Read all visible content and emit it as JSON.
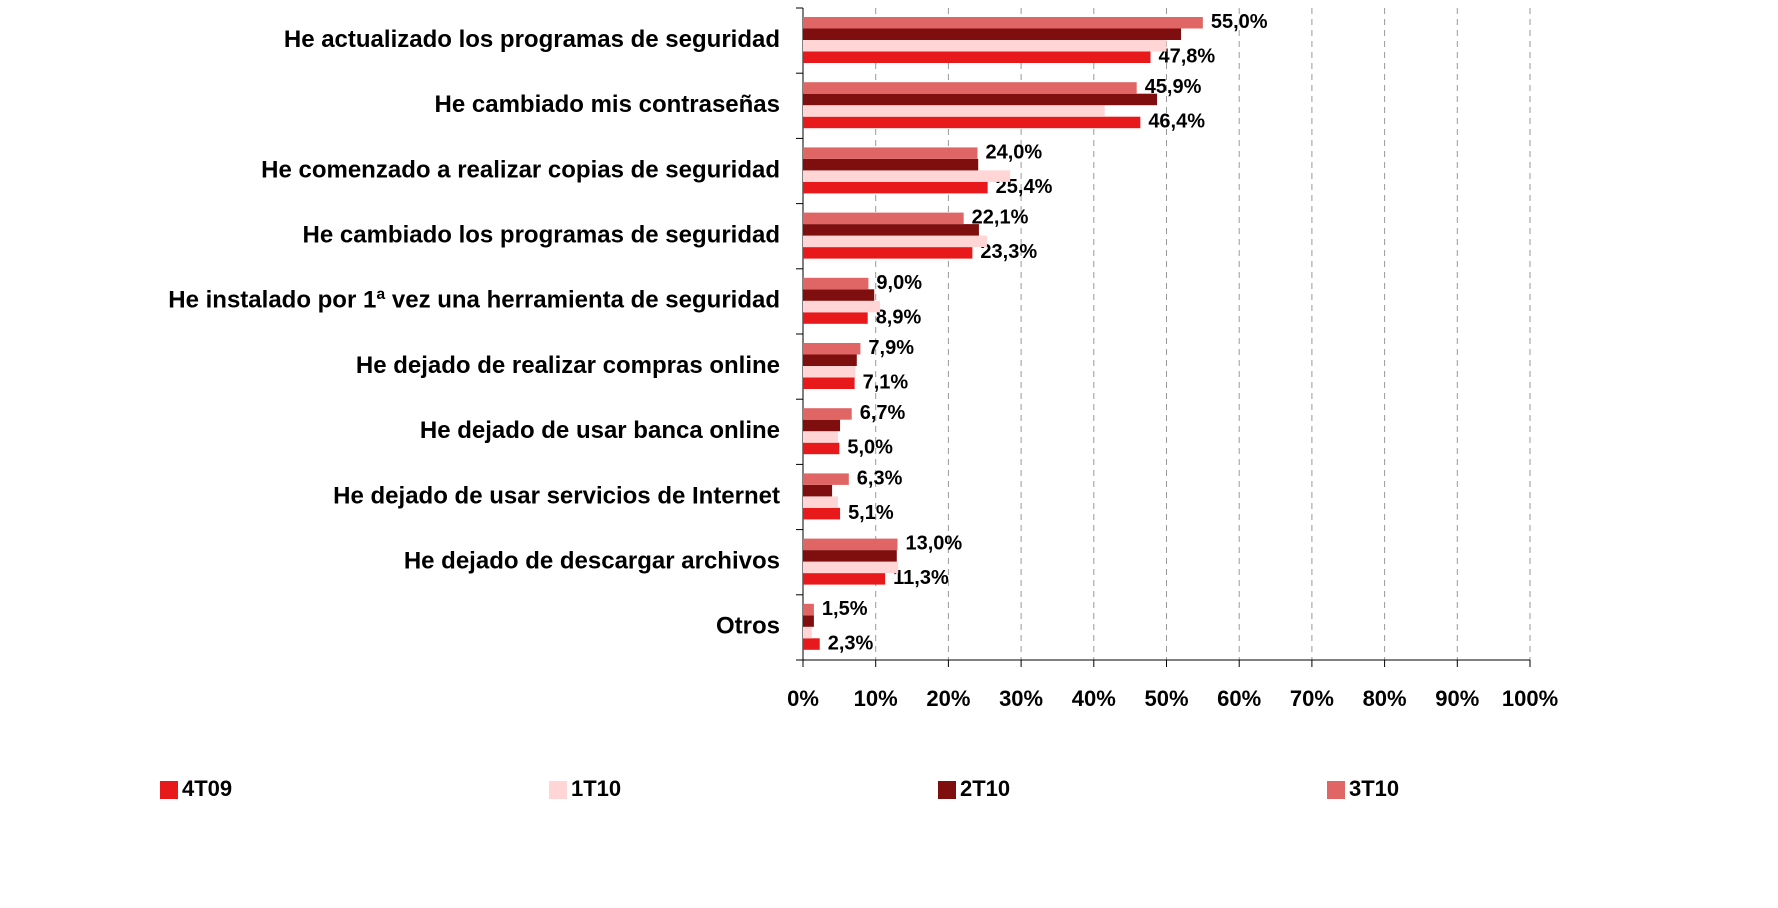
{
  "chart_data": {
    "type": "bar",
    "orientation": "horizontal",
    "categories": [
      "He actualizado los programas de seguridad",
      "He cambiado mis contraseñas",
      "He comenzado a realizar copias de seguridad",
      "He cambiado los programas de seguridad",
      "He instalado por 1ª vez una herramienta de seguridad",
      "He dejado de realizar compras online",
      "He dejado de usar banca online",
      "He dejado de usar servicios de Internet",
      "He dejado de descargar archivos",
      "Otros"
    ],
    "series": [
      {
        "name": "4T09",
        "color": "#e8191b",
        "values": [
          47.8,
          46.4,
          25.4,
          23.3,
          8.9,
          7.1,
          5.0,
          5.1,
          11.3,
          2.3
        ],
        "value_labels": [
          "47,8%",
          "46,4%",
          "25,4%",
          "23,3%",
          "8,9%",
          "7,1%",
          "5,0%",
          "5,1%",
          "11,3%",
          "2,3%"
        ]
      },
      {
        "name": "1T10",
        "color": "#ffd5d5",
        "values": [
          50,
          41.5,
          28.5,
          25.3,
          10.6,
          7.2,
          4.8,
          4.8,
          13.1,
          1.2
        ]
      },
      {
        "name": "2T10",
        "color": "#7f0f0f",
        "values": [
          52,
          48.7,
          24.1,
          24.2,
          9.8,
          7.4,
          5.1,
          4.0,
          12.9,
          1.5
        ]
      },
      {
        "name": "3T10",
        "color": "#e06666",
        "values": [
          55.0,
          45.9,
          24.0,
          22.1,
          9.0,
          7.9,
          6.7,
          6.3,
          13.0,
          1.5
        ],
        "value_labels": [
          "55,0%",
          "45,9%",
          "24,0%",
          "22,1%",
          "9,0%",
          "7,9%",
          "6,7%",
          "6,3%",
          "13,0%",
          "1,5%"
        ]
      }
    ],
    "xlim": [
      0,
      100
    ],
    "xticks": [
      {
        "value": 0,
        "label": "0%"
      },
      {
        "value": 10,
        "label": "10%"
      },
      {
        "value": 20,
        "label": "20%"
      },
      {
        "value": 30,
        "label": "30%"
      },
      {
        "value": 40,
        "label": "40%"
      },
      {
        "value": 50,
        "label": "50%"
      },
      {
        "value": 60,
        "label": "60%"
      },
      {
        "value": 70,
        "label": "70%"
      },
      {
        "value": 80,
        "label": "80%"
      },
      {
        "value": 90,
        "label": "90%"
      },
      {
        "value": 100,
        "label": "100%"
      }
    ],
    "grid": true,
    "legend": "bottom"
  }
}
